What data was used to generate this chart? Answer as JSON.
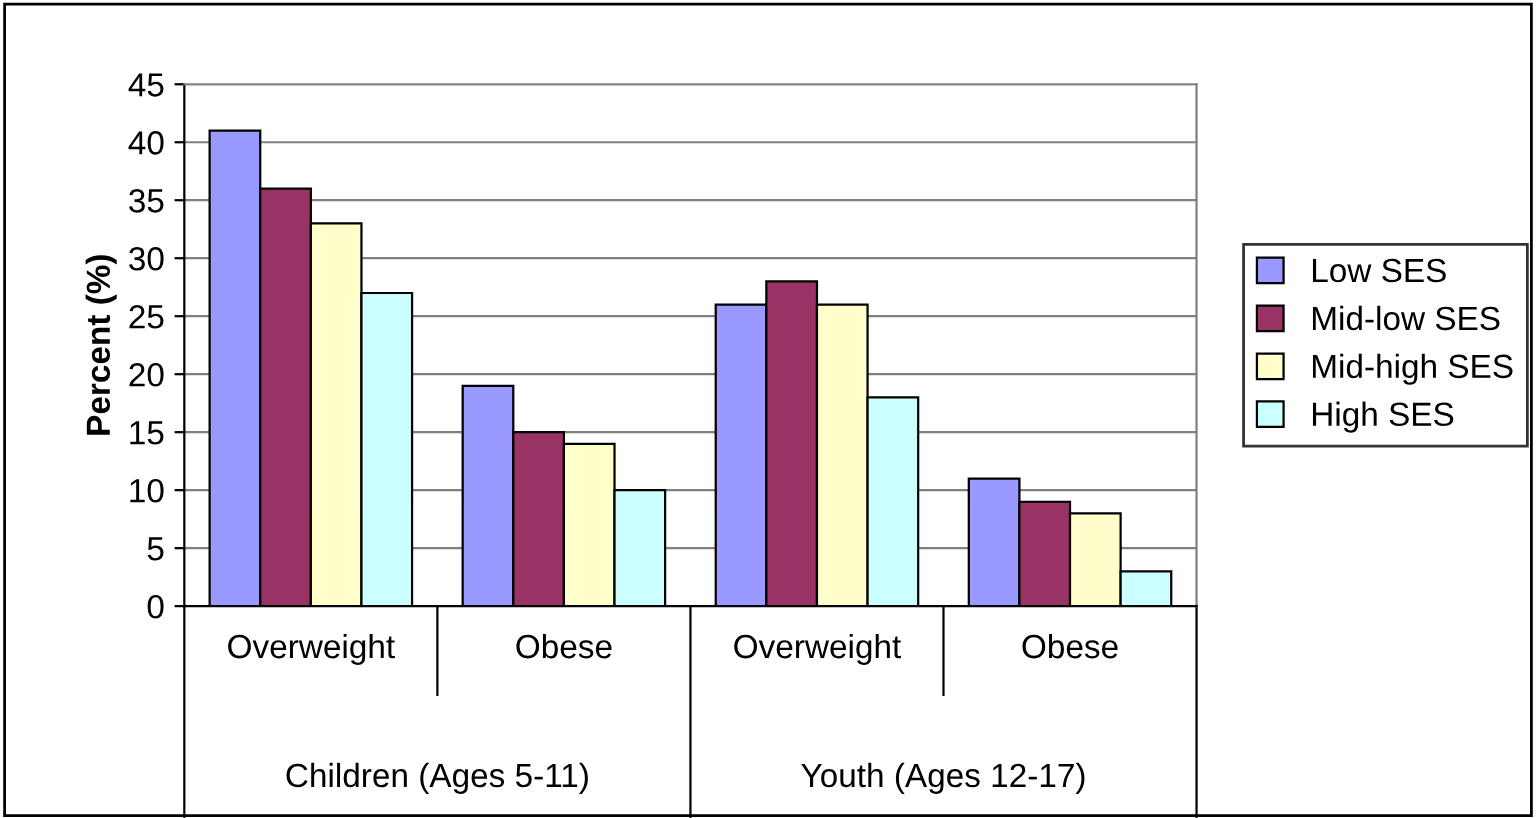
{
  "chart_data": {
    "type": "bar",
    "ylabel": "Percent (%)",
    "categories": [
      "Overweight",
      "Obese",
      "Overweight",
      "Obese"
    ],
    "series": [
      {
        "name": "Low SES",
        "color": "#9999ff",
        "values": [
          41,
          19,
          26,
          11
        ]
      },
      {
        "name": "Mid-low SES",
        "color": "#993366",
        "values": [
          36,
          15,
          28,
          9
        ]
      },
      {
        "name": "Mid-high SES",
        "color": "#ffffcc",
        "values": [
          33,
          14,
          26,
          8
        ]
      },
      {
        "name": "High SES",
        "color": "#ccffff",
        "values": [
          27,
          10,
          18,
          3
        ]
      }
    ],
    "annotations": [
      "Children (Ages 5-11)",
      "Youth (Ages 12-17)"
    ],
    "ylim": [
      0,
      45
    ],
    "yticks": [
      0,
      5,
      10,
      15,
      20,
      25,
      30,
      35,
      40,
      45
    ],
    "grid": "y",
    "legend": "right"
  }
}
